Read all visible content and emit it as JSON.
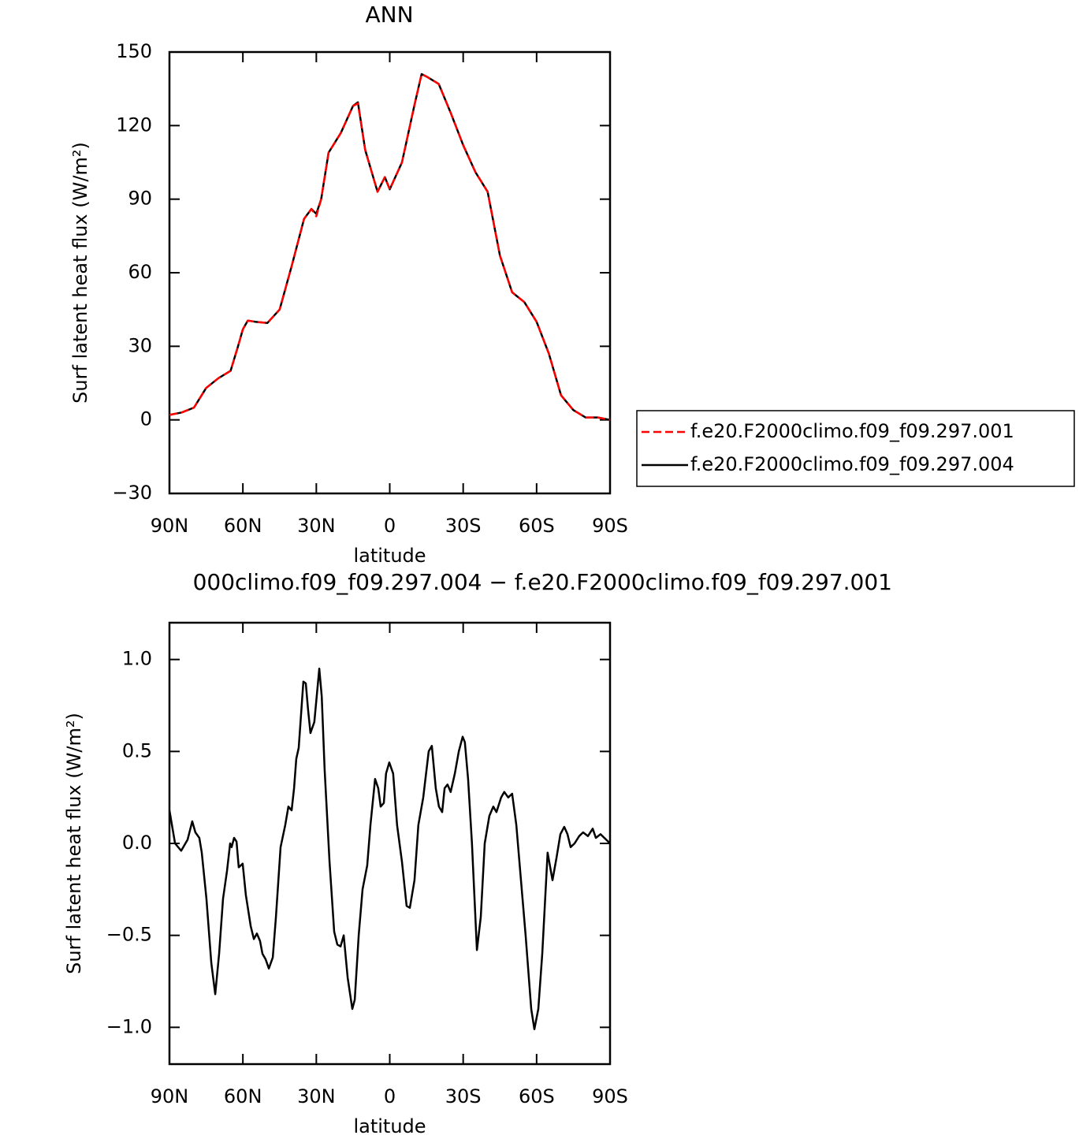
{
  "chart_data": [
    {
      "type": "line",
      "title": "ANN",
      "x_label": "latitude",
      "y_label": "Surf latent heat flux (W/m²)",
      "x": [
        90,
        85,
        80,
        75,
        70,
        65,
        62,
        60,
        58,
        55,
        50,
        45,
        40,
        35,
        32,
        30,
        28,
        25,
        20,
        15,
        13,
        10,
        5,
        2,
        0,
        -5,
        -10,
        -13,
        -15,
        -20,
        -25,
        -30,
        -35,
        -40,
        -45,
        -50,
        -55,
        -60,
        -65,
        -70,
        -75,
        -80,
        -85,
        -90
      ],
      "series": [
        {
          "name": "f.e20.F2000climo.f09_f09.297.001",
          "color": "#ff0000",
          "dash": true,
          "values": [
            2,
            3,
            5,
            13,
            17,
            20,
            30,
            37,
            40.5,
            40,
            39.5,
            45,
            63,
            82,
            86,
            83,
            90,
            109,
            117,
            128,
            129,
            110,
            93,
            99,
            94,
            105,
            128,
            141,
            140,
            137,
            125,
            112,
            101,
            93,
            67,
            52,
            48,
            40,
            27,
            10,
            4,
            1,
            1,
            0
          ]
        },
        {
          "name": "f.e20.F2000climo.f09_f09.297.004",
          "color": "#000000",
          "dash": false,
          "values": [
            2,
            3,
            5,
            13,
            17,
            20,
            30,
            37,
            40.5,
            40,
            39.5,
            45,
            63,
            82,
            86,
            84,
            90,
            109,
            117,
            128,
            129.5,
            110,
            93,
            99,
            94,
            105,
            128,
            141,
            140,
            137,
            125,
            112,
            101,
            93,
            67,
            52,
            48,
            40,
            27,
            10,
            4,
            1,
            1,
            0
          ]
        }
      ],
      "xlim": [
        90,
        -90
      ],
      "xticks": [
        {
          "value": 90,
          "label": "90N"
        },
        {
          "value": 60,
          "label": "60N"
        },
        {
          "value": 30,
          "label": "30N"
        },
        0,
        {
          "value": -30,
          "label": "30S"
        },
        {
          "value": -60,
          "label": "60S"
        },
        {
          "value": -90,
          "label": "90S"
        }
      ],
      "ylim": [
        -30,
        150
      ],
      "yticks": [
        {
          "value": -30,
          "label": "−30"
        },
        0,
        30,
        60,
        90,
        120,
        150
      ],
      "legend": "right"
    },
    {
      "type": "line",
      "title": "000climo.f09_f09.297.004 − f.e20.F2000climo.f09_f09.297.001",
      "x_label": "latitude",
      "y_label": "Surf latent heat flux (W/m²)",
      "x": [
        90,
        87.7,
        85.2,
        82.6,
        80.7,
        79.4,
        77.8,
        76.8,
        74.9,
        72.9,
        71.3,
        69.7,
        68.1,
        66.5,
        65.2,
        64.6,
        63.6,
        62.6,
        61.7,
        60.1,
        58.8,
        56.8,
        55.5,
        54.3,
        53.0,
        52.0,
        50.7,
        49.4,
        47.8,
        46.5,
        44.6,
        42.7,
        41.4,
        40.1,
        39.1,
        38.2,
        37.2,
        35.3,
        34.3,
        33.4,
        32.4,
        30.8,
        28.8,
        27.8,
        26.6,
        24.6,
        22.7,
        21.4,
        20.1,
        18.8,
        17.2,
        15.3,
        14.3,
        12.7,
        11.1,
        9.2,
        7.9,
        6.0,
        4.7,
        3.7,
        2.4,
        1.5,
        0.2,
        -1.4,
        -3.0,
        -5.0,
        -6.9,
        -8.2,
        -10.1,
        -11.7,
        -13.7,
        -15.9,
        -17.2,
        -18.8,
        -20.1,
        -21.4,
        -22.4,
        -23.6,
        -24.9,
        -26.6,
        -28.2,
        -29.8,
        -30.7,
        -32.0,
        -33.6,
        -35.6,
        -37.2,
        -38.8,
        -40.7,
        -42.3,
        -43.6,
        -45.5,
        -46.8,
        -48.4,
        -50.0,
        -51.7,
        -53.3,
        -55.5,
        -57.8,
        -59.1,
        -60.7,
        -62.3,
        -64.5,
        -66.5,
        -68.1,
        -69.7,
        -71.3,
        -72.6,
        -73.9,
        -75.5,
        -77.4,
        -79.0,
        -81.0,
        -82.9,
        -84.2,
        -86.1,
        -90
      ],
      "series": [
        {
          "color": "#000000",
          "dash": false,
          "values": [
            0.18,
            0.0,
            -0.04,
            0.02,
            0.12,
            0.06,
            0.03,
            -0.05,
            -0.3,
            -0.65,
            -0.82,
            -0.6,
            -0.3,
            -0.15,
            0.0,
            -0.02,
            0.03,
            0.01,
            -0.13,
            -0.11,
            -0.28,
            -0.45,
            -0.52,
            -0.49,
            -0.53,
            -0.6,
            -0.63,
            -0.68,
            -0.62,
            -0.4,
            -0.02,
            0.1,
            0.2,
            0.18,
            0.3,
            0.46,
            0.52,
            0.88,
            0.87,
            0.73,
            0.6,
            0.66,
            0.95,
            0.8,
            0.4,
            -0.1,
            -0.48,
            -0.55,
            -0.56,
            -0.5,
            -0.73,
            -0.9,
            -0.85,
            -0.5,
            -0.25,
            -0.12,
            0.1,
            0.35,
            0.3,
            0.2,
            0.22,
            0.38,
            0.44,
            0.38,
            0.1,
            -0.1,
            -0.34,
            -0.35,
            -0.2,
            0.1,
            0.25,
            0.5,
            0.53,
            0.3,
            0.2,
            0.17,
            0.3,
            0.32,
            0.28,
            0.38,
            0.5,
            0.58,
            0.55,
            0.35,
            0.0,
            -0.58,
            -0.4,
            0.0,
            0.15,
            0.2,
            0.17,
            0.25,
            0.28,
            0.25,
            0.27,
            0.1,
            -0.15,
            -0.5,
            -0.9,
            -1.01,
            -0.9,
            -0.6,
            -0.05,
            -0.2,
            -0.08,
            0.05,
            0.09,
            0.05,
            -0.02,
            0.0,
            0.04,
            0.06,
            0.04,
            0.08,
            0.03,
            0.05,
            0.0
          ]
        }
      ],
      "xlim": [
        90,
        -90
      ],
      "xticks": [
        {
          "value": 90,
          "label": "90N"
        },
        {
          "value": 60,
          "label": "60N"
        },
        {
          "value": 30,
          "label": "30N"
        },
        0,
        {
          "value": -30,
          "label": "30S"
        },
        {
          "value": -60,
          "label": "60S"
        },
        {
          "value": -90,
          "label": "90S"
        }
      ],
      "ylim": [
        -1.2,
        1.2
      ],
      "yticks": [
        {
          "value": -1.0,
          "label": "−1.0"
        },
        {
          "value": -0.5,
          "label": "−0.5"
        },
        {
          "value": 0.0,
          "label": "0.0"
        },
        {
          "value": 0.5,
          "label": "0.5"
        },
        {
          "value": 1.0,
          "label": "1.0"
        }
      ]
    }
  ]
}
